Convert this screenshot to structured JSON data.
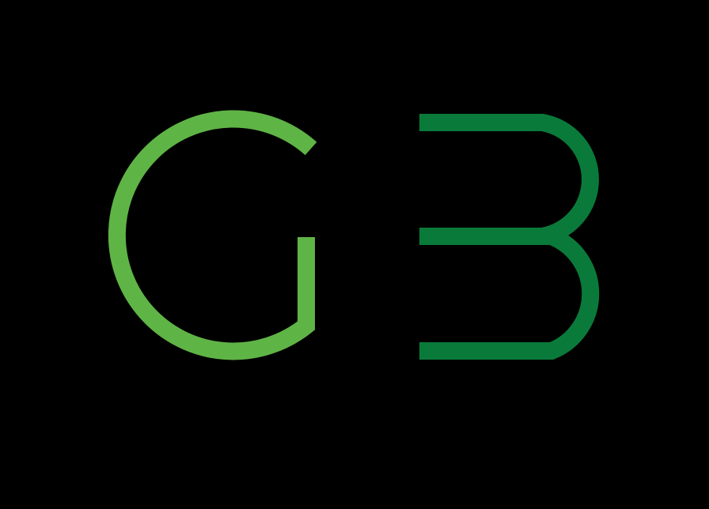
{
  "logo": {
    "text": "GB",
    "letters": [
      "G",
      "B"
    ],
    "colors": {
      "background": "#000000",
      "g": "#5fb446",
      "b": "#0a7a3a"
    }
  }
}
